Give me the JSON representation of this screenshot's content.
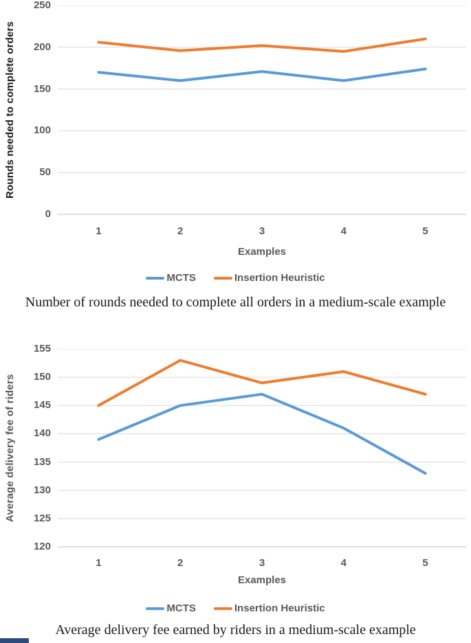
{
  "style": {
    "grid_color": "#D9D9D9",
    "axis_line_color": "#BFBFBF",
    "tick_color": "#595959",
    "legend_text_color": "#595959",
    "line_width": 4,
    "partial_element_color": "#2E4A7A"
  },
  "chart_data": [
    {
      "type": "line",
      "categories": [
        "1",
        "2",
        "3",
        "4",
        "5"
      ],
      "series": [
        {
          "name": "MCTS",
          "color": "#5B9BD5",
          "values": [
            170,
            160,
            171,
            160,
            174
          ]
        },
        {
          "name": "Insertion Heuristic",
          "color": "#ED7D31",
          "values": [
            206,
            196,
            202,
            195,
            210
          ]
        }
      ],
      "xlabel": "Examples",
      "ylabel": "Rounds needed to complete orders",
      "ylabel_color": "#1a1a1a",
      "ylim": [
        0,
        250
      ],
      "ytick_step": 50,
      "grid": true,
      "legend_position": "bottom",
      "caption": "Number of rounds needed to complete all orders in a medium-scale example"
    },
    {
      "type": "line",
      "categories": [
        "1",
        "2",
        "3",
        "4",
        "5"
      ],
      "series": [
        {
          "name": "MCTS",
          "color": "#5B9BD5",
          "values": [
            139,
            145,
            147,
            141,
            133
          ]
        },
        {
          "name": "Insertion Heuristic",
          "color": "#ED7D31",
          "values": [
            145,
            153,
            149,
            151,
            147
          ]
        }
      ],
      "xlabel": "Examples",
      "ylabel": "Average delivery fee of riders",
      "ylabel_color": "#595959",
      "ylim": [
        120,
        155
      ],
      "ytick_step": 5,
      "grid": true,
      "legend_position": "bottom",
      "caption": "Average delivery fee earned by riders in a medium-scale example"
    }
  ]
}
